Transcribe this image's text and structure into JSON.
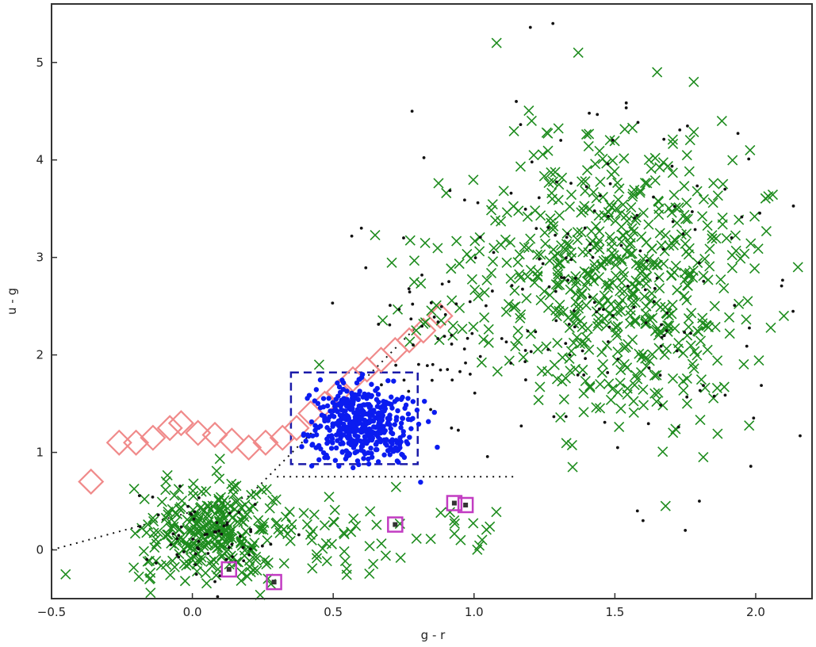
{
  "chart_data": {
    "type": "scatter",
    "title": "",
    "xlabel": "g - r",
    "ylabel": "u - g",
    "xlim": [
      -0.5,
      2.2
    ],
    "ylim": [
      -0.5,
      5.6
    ],
    "grid": false,
    "xticks": [
      {
        "value": -0.5,
        "label": "−0.5"
      },
      {
        "value": 0.0,
        "label": "0.0"
      },
      {
        "value": 0.5,
        "label": "0.5"
      },
      {
        "value": 1.0,
        "label": "1.0"
      },
      {
        "value": 1.5,
        "label": "1.5"
      },
      {
        "value": 2.0,
        "label": "2.0"
      }
    ],
    "yticks": [
      {
        "value": 0,
        "label": "0"
      },
      {
        "value": 1,
        "label": "1"
      },
      {
        "value": 2,
        "label": "2"
      },
      {
        "value": 3,
        "label": "3"
      },
      {
        "value": 4,
        "label": "4"
      },
      {
        "value": 5,
        "label": "5"
      }
    ],
    "colors": {
      "cross": "#1e8c1e",
      "dot": "#111111",
      "blue": "#0b1cf0",
      "diamond": "#f08a8a",
      "square": "#c23cc2",
      "box": "#1a1aa8",
      "guide": "#111111"
    },
    "series": [
      {
        "marker": "diamond",
        "x": [
          -0.36,
          -0.26,
          -0.2,
          -0.14,
          -0.08,
          -0.04,
          0.02,
          0.08,
          0.14,
          0.2,
          0.26,
          0.32,
          0.37,
          0.42,
          0.47,
          0.52,
          0.57,
          0.62,
          0.67,
          0.72,
          0.77,
          0.82,
          0.88
        ],
        "y": [
          0.7,
          1.1,
          1.1,
          1.15,
          1.25,
          1.3,
          1.2,
          1.18,
          1.12,
          1.05,
          1.1,
          1.15,
          1.25,
          1.4,
          1.5,
          1.62,
          1.75,
          1.85,
          1.95,
          2.05,
          2.15,
          2.25,
          2.4
        ]
      },
      {
        "marker": "cross",
        "clusters": [
          {
            "cx": 1.55,
            "cy": 2.6,
            "sx": 0.2,
            "sy": 0.65,
            "n": 460
          },
          {
            "cx": 1.5,
            "cy": 3.7,
            "sx": 0.25,
            "sy": 0.45,
            "n": 80
          },
          {
            "cx": 1.05,
            "cy": 2.6,
            "sx": 0.2,
            "sy": 0.4,
            "n": 70
          },
          {
            "cx": 0.08,
            "cy": 0.2,
            "sx": 0.13,
            "sy": 0.25,
            "n": 280
          },
          {
            "cx": 0.55,
            "cy": 0.1,
            "sx": 0.18,
            "sy": 0.22,
            "n": 40
          },
          {
            "cx": 0.95,
            "cy": 0.2,
            "sx": 0.07,
            "sy": 0.15,
            "n": 14
          }
        ],
        "extra_x": [
          1.08,
          1.37,
          1.65,
          1.78,
          1.88,
          1.98,
          2.15,
          2.1,
          0.45,
          -0.45,
          1.35,
          1.68
        ],
        "extra_y": [
          5.2,
          5.1,
          4.9,
          4.8,
          4.4,
          4.1,
          2.9,
          2.4,
          1.9,
          -0.25,
          0.85,
          0.45
        ]
      },
      {
        "marker": "dot",
        "clusters": [
          {
            "cx": 1.45,
            "cy": 2.8,
            "sx": 0.35,
            "sy": 0.9,
            "n": 160
          },
          {
            "cx": 0.85,
            "cy": 2.2,
            "sx": 0.12,
            "sy": 0.35,
            "n": 40
          },
          {
            "cx": 0.05,
            "cy": 0.15,
            "sx": 0.12,
            "sy": 0.25,
            "n": 60
          }
        ],
        "extra_x": [
          1.28,
          0.78,
          0.75,
          1.15,
          1.6,
          1.75,
          1.58,
          0.92,
          1.8,
          0.6
        ],
        "extra_y": [
          5.4,
          4.5,
          3.2,
          4.6,
          0.3,
          0.2,
          0.4,
          1.25,
          0.5,
          3.3
        ]
      },
      {
        "marker": "blue",
        "clusters": [
          {
            "cx": 0.6,
            "cy": 1.3,
            "sx": 0.09,
            "sy": 0.2,
            "n": 460
          }
        ]
      },
      {
        "marker": "square",
        "x": [
          0.13,
          0.29,
          0.72,
          0.93,
          0.97
        ],
        "y": [
          -0.2,
          -0.33,
          0.26,
          0.48,
          0.46
        ]
      }
    ],
    "selection_box": {
      "x0": 0.35,
      "x1": 0.8,
      "y0": 0.88,
      "y1": 1.82
    },
    "guide_lines": [
      {
        "points": [
          [
            -0.5,
            0.0
          ],
          [
            0.2,
            0.55
          ],
          [
            0.8,
            2.3
          ]
        ]
      },
      {
        "points": [
          [
            0.3,
            0.75
          ],
          [
            1.15,
            0.75
          ]
        ]
      }
    ]
  }
}
